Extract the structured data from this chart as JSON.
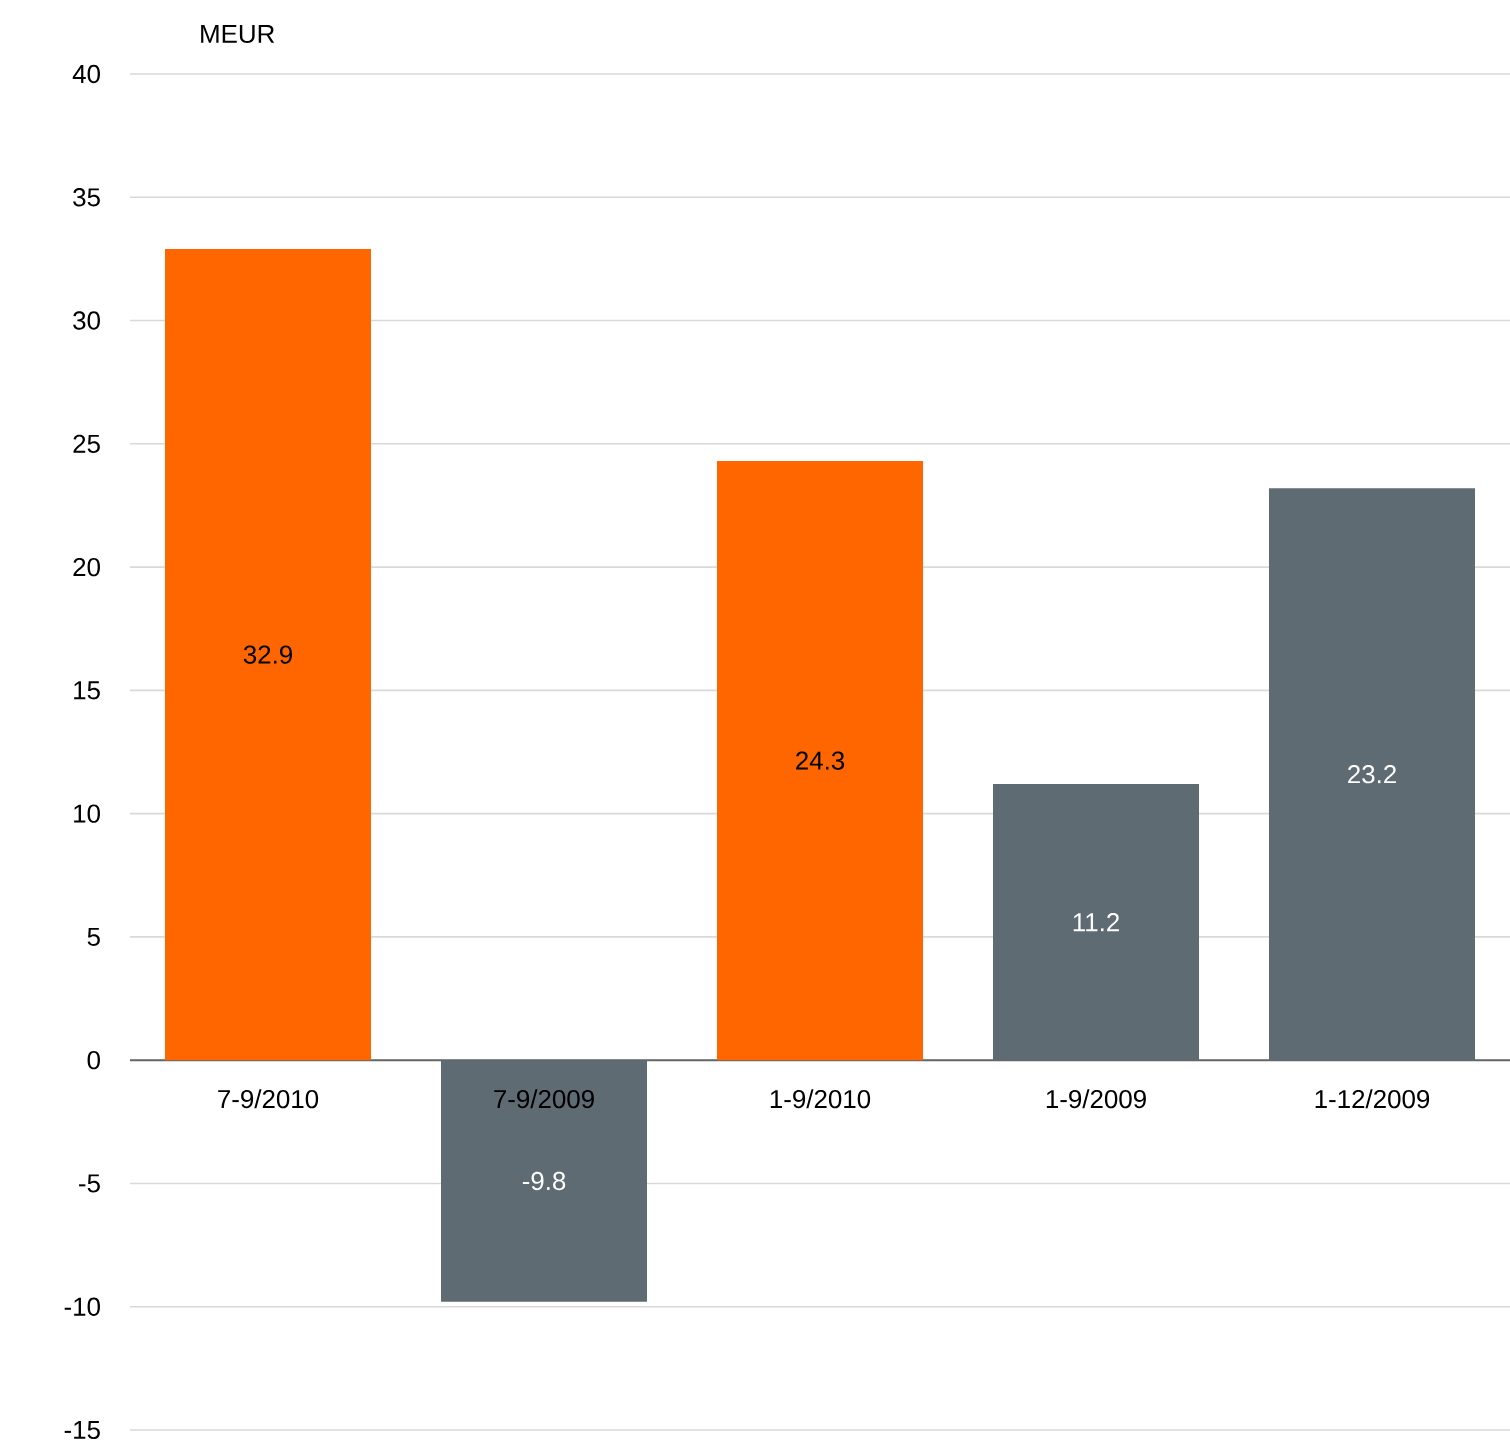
{
  "chart_data": {
    "type": "bar",
    "ylabel": "MEUR",
    "categories": [
      "7-9/2010",
      "7-9/2009",
      "1-9/2010",
      "1-9/2009",
      "1-12/2009"
    ],
    "values": [
      32.9,
      -9.8,
      24.3,
      11.2,
      23.2
    ],
    "colors": [
      "#ff6600",
      "#5f6b73",
      "#ff6600",
      "#5f6b73",
      "#5f6b73"
    ],
    "ylim": [
      -15,
      40
    ],
    "yticks": [
      -15,
      -10,
      -5,
      0,
      5,
      10,
      15,
      20,
      25,
      30,
      35,
      40
    ],
    "grid": "y",
    "data_labels": true
  }
}
